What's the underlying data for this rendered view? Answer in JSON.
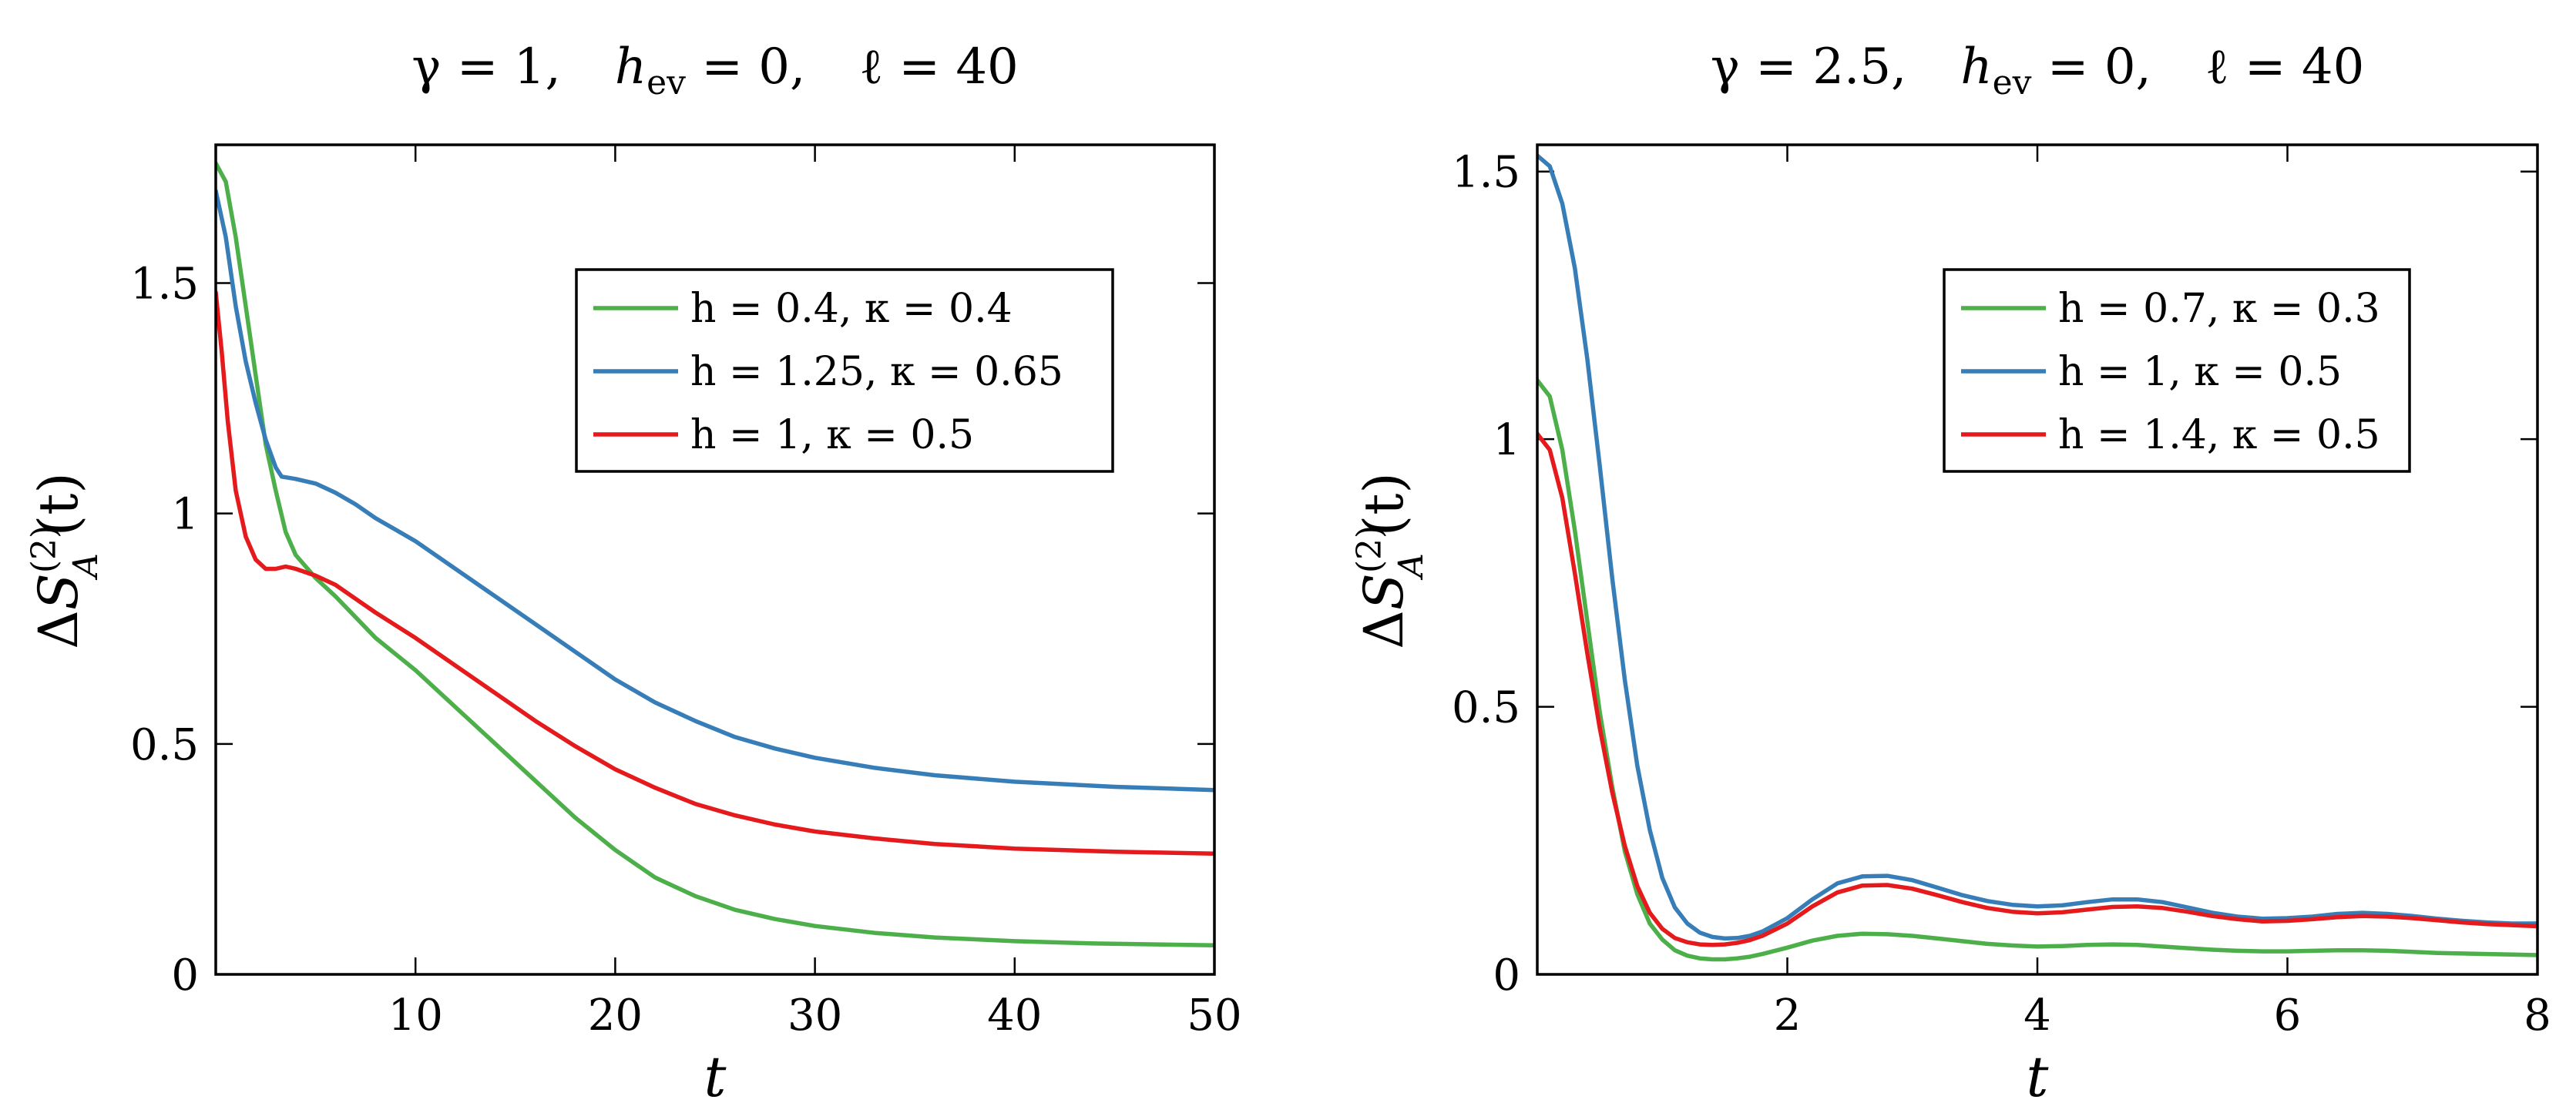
{
  "chart_data": [
    {
      "type": "line",
      "title": "γ = 1,    hev = 0,    ℓ = 40",
      "title_parts": {
        "gamma": "γ = 1,",
        "h": "h",
        "h_sub": "ev",
        "h_val": " = 0,",
        "ell": "ℓ = 40"
      },
      "xlabel": "t",
      "ylabel": {
        "prefix": "ΔS",
        "sup": "(2)",
        "sub": "A",
        "suffix": "(t)"
      },
      "xlim": [
        0,
        50
      ],
      "ylim": [
        0,
        1.8
      ],
      "xticks": [
        10,
        20,
        30,
        40,
        50
      ],
      "xtick_labels": [
        "10",
        "20",
        "30",
        "40",
        "50"
      ],
      "yticks": [
        0,
        0.5,
        1,
        1.5
      ],
      "ytick_labels": [
        "0",
        "0.5",
        "1",
        "1.5"
      ],
      "legend_position": "upper-right",
      "series": [
        {
          "name": "h = 0.4,  κ = 0.4",
          "color": "#4daf4a",
          "x": [
            0,
            0.5,
            1,
            1.5,
            2,
            2.5,
            3,
            3.5,
            4,
            5,
            6,
            8,
            10,
            12,
            14,
            16,
            18,
            20,
            22,
            24,
            26,
            28,
            30,
            33,
            36,
            40,
            44,
            50
          ],
          "y": [
            1.76,
            1.72,
            1.6,
            1.45,
            1.3,
            1.15,
            1.05,
            0.96,
            0.91,
            0.86,
            0.82,
            0.73,
            0.66,
            0.58,
            0.5,
            0.42,
            0.34,
            0.27,
            0.21,
            0.17,
            0.14,
            0.12,
            0.105,
            0.09,
            0.08,
            0.072,
            0.067,
            0.063
          ]
        },
        {
          "name": "h = 1.25,  κ = 0.65",
          "color": "#377eb8",
          "x": [
            0,
            0.5,
            1,
            1.5,
            2,
            2.5,
            3,
            3.3,
            4,
            5,
            6,
            7,
            8,
            10,
            12,
            14,
            16,
            18,
            20,
            22,
            24,
            26,
            28,
            30,
            33,
            36,
            40,
            45,
            50
          ],
          "y": [
            1.7,
            1.6,
            1.45,
            1.33,
            1.24,
            1.16,
            1.1,
            1.08,
            1.075,
            1.065,
            1.045,
            1.02,
            0.99,
            0.94,
            0.88,
            0.82,
            0.76,
            0.7,
            0.64,
            0.59,
            0.55,
            0.515,
            0.49,
            0.47,
            0.448,
            0.432,
            0.418,
            0.407,
            0.4
          ]
        },
        {
          "name": "h = 1,  κ = 0.5",
          "color": "#e41a1c",
          "x": [
            0,
            0.3,
            0.6,
            1,
            1.5,
            2,
            2.5,
            3,
            3.5,
            4,
            5,
            6,
            7,
            8,
            10,
            12,
            14,
            16,
            18,
            20,
            22,
            24,
            26,
            28,
            30,
            33,
            36,
            40,
            45,
            50
          ],
          "y": [
            1.48,
            1.35,
            1.2,
            1.05,
            0.95,
            0.9,
            0.88,
            0.88,
            0.885,
            0.88,
            0.865,
            0.845,
            0.815,
            0.785,
            0.73,
            0.67,
            0.61,
            0.55,
            0.495,
            0.445,
            0.405,
            0.37,
            0.345,
            0.325,
            0.31,
            0.295,
            0.283,
            0.273,
            0.266,
            0.262
          ]
        }
      ]
    },
    {
      "type": "line",
      "title": "γ = 2.5,    hev = 0,    ℓ = 40",
      "title_parts": {
        "gamma": "γ = 2.5,",
        "h": "h",
        "h_sub": "ev",
        "h_val": " = 0,",
        "ell": "ℓ = 40"
      },
      "xlabel": "t",
      "ylabel": {
        "prefix": "ΔS",
        "sup": "(2)",
        "sub": "A",
        "suffix": "(t)"
      },
      "xlim": [
        0,
        8
      ],
      "ylim": [
        0,
        1.55
      ],
      "xticks": [
        2,
        4,
        6,
        8
      ],
      "xtick_labels": [
        "2",
        "4",
        "6",
        "8"
      ],
      "yticks": [
        0,
        0.5,
        1,
        1.5
      ],
      "ytick_labels": [
        "0",
        "0.5",
        "1",
        "1.5"
      ],
      "legend_position": "upper-right",
      "series": [
        {
          "name": "h = 0.7,  κ = 0.3",
          "color": "#4daf4a",
          "x": [
            0,
            0.1,
            0.2,
            0.3,
            0.4,
            0.5,
            0.6,
            0.7,
            0.8,
            0.9,
            1,
            1.1,
            1.2,
            1.3,
            1.4,
            1.5,
            1.6,
            1.7,
            1.8,
            2,
            2.2,
            2.4,
            2.6,
            2.8,
            3,
            3.2,
            3.4,
            3.6,
            3.8,
            4,
            4.2,
            4.4,
            4.6,
            4.8,
            5,
            5.2,
            5.4,
            5.6,
            5.8,
            6,
            6.2,
            6.4,
            6.6,
            6.8,
            7,
            7.2,
            7.4,
            7.6,
            7.8,
            8
          ],
          "y": [
            1.11,
            1.08,
            0.98,
            0.83,
            0.66,
            0.49,
            0.35,
            0.23,
            0.15,
            0.095,
            0.065,
            0.045,
            0.035,
            0.03,
            0.028,
            0.028,
            0.03,
            0.033,
            0.038,
            0.05,
            0.063,
            0.072,
            0.076,
            0.075,
            0.072,
            0.067,
            0.062,
            0.057,
            0.054,
            0.052,
            0.053,
            0.055,
            0.056,
            0.055,
            0.052,
            0.049,
            0.046,
            0.044,
            0.043,
            0.043,
            0.044,
            0.045,
            0.045,
            0.044,
            0.042,
            0.04,
            0.039,
            0.038,
            0.037,
            0.036
          ]
        },
        {
          "name": "h = 1,  κ = 0.5",
          "color": "#377eb8",
          "x": [
            0,
            0.1,
            0.2,
            0.3,
            0.4,
            0.5,
            0.6,
            0.7,
            0.8,
            0.9,
            1,
            1.1,
            1.2,
            1.3,
            1.4,
            1.5,
            1.6,
            1.7,
            1.8,
            2,
            2.2,
            2.4,
            2.6,
            2.8,
            3,
            3.2,
            3.4,
            3.6,
            3.8,
            4,
            4.2,
            4.4,
            4.6,
            4.8,
            5,
            5.2,
            5.4,
            5.6,
            5.8,
            6,
            6.2,
            6.4,
            6.6,
            6.8,
            7,
            7.2,
            7.4,
            7.6,
            7.8,
            8
          ],
          "y": [
            1.53,
            1.51,
            1.44,
            1.32,
            1.15,
            0.95,
            0.74,
            0.55,
            0.39,
            0.27,
            0.18,
            0.125,
            0.095,
            0.078,
            0.07,
            0.067,
            0.068,
            0.072,
            0.08,
            0.105,
            0.14,
            0.17,
            0.183,
            0.184,
            0.176,
            0.162,
            0.148,
            0.137,
            0.13,
            0.127,
            0.129,
            0.135,
            0.14,
            0.14,
            0.135,
            0.125,
            0.115,
            0.108,
            0.104,
            0.105,
            0.108,
            0.113,
            0.115,
            0.113,
            0.109,
            0.104,
            0.1,
            0.097,
            0.095,
            0.095
          ]
        },
        {
          "name": "h = 1.4,  κ = 0.5",
          "color": "#e41a1c",
          "x": [
            0,
            0.1,
            0.2,
            0.3,
            0.4,
            0.5,
            0.6,
            0.7,
            0.8,
            0.9,
            1,
            1.1,
            1.2,
            1.3,
            1.4,
            1.5,
            1.6,
            1.7,
            1.8,
            2,
            2.2,
            2.4,
            2.6,
            2.8,
            3,
            3.2,
            3.4,
            3.6,
            3.8,
            4,
            4.2,
            4.4,
            4.6,
            4.8,
            5,
            5.2,
            5.4,
            5.6,
            5.8,
            6,
            6.2,
            6.4,
            6.6,
            6.8,
            7,
            7.2,
            7.4,
            7.6,
            7.8,
            8
          ],
          "y": [
            1.01,
            0.98,
            0.89,
            0.75,
            0.6,
            0.46,
            0.34,
            0.24,
            0.165,
            0.115,
            0.085,
            0.068,
            0.06,
            0.056,
            0.055,
            0.056,
            0.059,
            0.064,
            0.072,
            0.095,
            0.127,
            0.153,
            0.166,
            0.167,
            0.16,
            0.148,
            0.135,
            0.124,
            0.117,
            0.114,
            0.116,
            0.121,
            0.126,
            0.127,
            0.124,
            0.117,
            0.109,
            0.103,
            0.099,
            0.1,
            0.103,
            0.107,
            0.109,
            0.108,
            0.105,
            0.101,
            0.097,
            0.094,
            0.092,
            0.09
          ]
        }
      ]
    }
  ]
}
